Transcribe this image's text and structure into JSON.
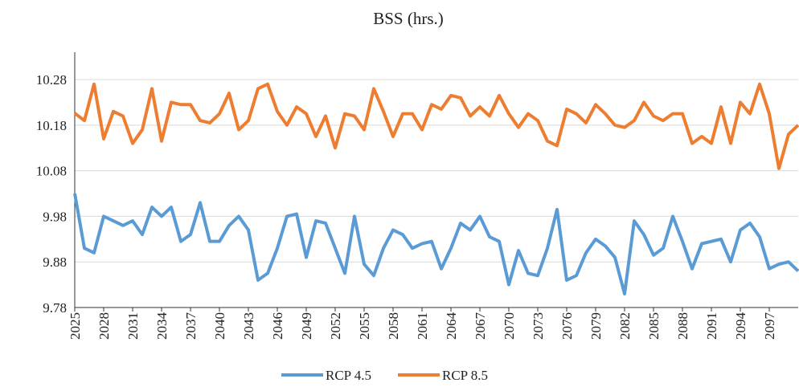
{
  "chart_data": {
    "type": "line",
    "title": "BSS (hrs.)",
    "x": [
      2025,
      2026,
      2027,
      2028,
      2029,
      2030,
      2031,
      2032,
      2033,
      2034,
      2035,
      2036,
      2037,
      2038,
      2039,
      2040,
      2041,
      2042,
      2043,
      2044,
      2045,
      2046,
      2047,
      2048,
      2049,
      2050,
      2051,
      2052,
      2053,
      2054,
      2055,
      2056,
      2057,
      2058,
      2059,
      2060,
      2061,
      2062,
      2063,
      2064,
      2065,
      2066,
      2067,
      2068,
      2069,
      2070,
      2071,
      2072,
      2073,
      2074,
      2075,
      2076,
      2077,
      2078,
      2079,
      2080,
      2081,
      2082,
      2083,
      2084,
      2085,
      2086,
      2087,
      2088,
      2089,
      2090,
      2091,
      2092,
      2093,
      2094,
      2095,
      2096,
      2097,
      2098,
      2099,
      2100
    ],
    "xlim": [
      2025,
      2100
    ],
    "xticks": [
      2025,
      2028,
      2031,
      2034,
      2037,
      2040,
      2043,
      2046,
      2049,
      2052,
      2055,
      2058,
      2061,
      2064,
      2067,
      2070,
      2073,
      2076,
      2079,
      2082,
      2085,
      2088,
      2091,
      2094,
      2097
    ],
    "ylim": [
      9.78,
      10.34
    ],
    "yticks": [
      9.78,
      9.88,
      9.98,
      10.08,
      10.18,
      10.28
    ],
    "grid": true,
    "legend": "bottom",
    "series": [
      {
        "name": "RCP 4.5",
        "color": "#5b9bd5",
        "values": [
          10.03,
          9.91,
          9.9,
          9.98,
          9.97,
          9.96,
          9.97,
          9.94,
          10.0,
          9.98,
          10.0,
          9.925,
          9.94,
          10.01,
          9.925,
          9.925,
          9.96,
          9.98,
          9.95,
          9.84,
          9.855,
          9.91,
          9.98,
          9.985,
          9.89,
          9.97,
          9.965,
          9.91,
          9.855,
          9.98,
          9.875,
          9.85,
          9.91,
          9.95,
          9.94,
          9.91,
          9.92,
          9.925,
          9.865,
          9.91,
          9.965,
          9.95,
          9.98,
          9.935,
          9.925,
          9.83,
          9.905,
          9.855,
          9.85,
          9.91,
          9.995,
          9.84,
          9.85,
          9.9,
          9.93,
          9.915,
          9.89,
          9.81,
          9.97,
          9.94,
          9.895,
          9.91,
          9.98,
          9.925,
          9.865,
          9.92,
          9.925,
          9.93,
          9.88,
          9.95,
          9.965,
          9.935,
          9.865,
          9.875,
          9.88,
          9.86
        ]
      },
      {
        "name": "RCP 8.5",
        "color": "#ed7d31",
        "values": [
          10.206,
          10.19,
          10.27,
          10.15,
          10.21,
          10.2,
          10.14,
          10.17,
          10.26,
          10.145,
          10.23,
          10.225,
          10.225,
          10.19,
          10.185,
          10.205,
          10.25,
          10.17,
          10.19,
          10.26,
          10.27,
          10.21,
          10.18,
          10.22,
          10.205,
          10.155,
          10.2,
          10.13,
          10.205,
          10.2,
          10.17,
          10.26,
          10.21,
          10.155,
          10.205,
          10.205,
          10.17,
          10.225,
          10.215,
          10.245,
          10.24,
          10.2,
          10.22,
          10.2,
          10.245,
          10.205,
          10.175,
          10.205,
          10.19,
          10.145,
          10.135,
          10.215,
          10.205,
          10.185,
          10.225,
          10.205,
          10.18,
          10.175,
          10.19,
          10.23,
          10.2,
          10.19,
          10.205,
          10.205,
          10.14,
          10.155,
          10.14,
          10.22,
          10.14,
          10.23,
          10.205,
          10.27,
          10.205,
          10.085,
          10.16,
          10.18
        ]
      }
    ]
  }
}
